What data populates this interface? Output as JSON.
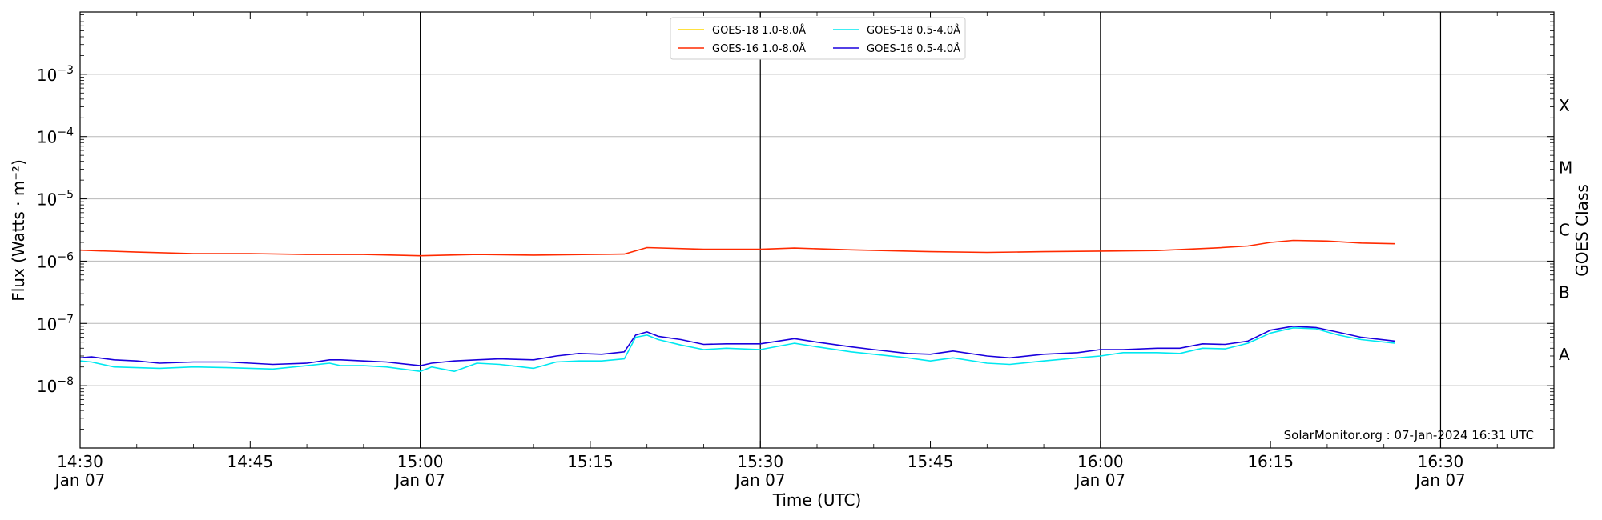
{
  "chart_data": {
    "type": "line",
    "title": "",
    "xlabel": "Time (UTC)",
    "ylabel": "Flux (Watts · m⁻²)",
    "ylabel_right": "GOES Class",
    "yscale": "log",
    "ylim": [
      1e-09,
      0.01
    ],
    "xlim": [
      "14:30",
      "16:40"
    ],
    "x_ticks": [
      {
        "time": "14:30",
        "line1": "14:30",
        "line2": "Jan 07"
      },
      {
        "time": "14:45",
        "line1": "14:45",
        "line2": ""
      },
      {
        "time": "15:00",
        "line1": "15:00",
        "line2": "Jan 07"
      },
      {
        "time": "15:15",
        "line1": "15:15",
        "line2": ""
      },
      {
        "time": "15:30",
        "line1": "15:30",
        "line2": "Jan 07"
      },
      {
        "time": "15:45",
        "line1": "15:45",
        "line2": ""
      },
      {
        "time": "16:00",
        "line1": "16:00",
        "line2": "Jan 07"
      },
      {
        "time": "16:15",
        "line1": "16:15",
        "line2": ""
      },
      {
        "time": "16:30",
        "line1": "16:30",
        "line2": "Jan 07"
      }
    ],
    "vertical_lines": [
      "15:00",
      "15:30",
      "16:00",
      "16:30"
    ],
    "y_ticks": [
      {
        "value": 1e-08,
        "label": "10",
        "exp": "−8"
      },
      {
        "value": 1e-07,
        "label": "10",
        "exp": "−7"
      },
      {
        "value": 1e-06,
        "label": "10",
        "exp": "−6"
      },
      {
        "value": 1e-05,
        "label": "10",
        "exp": "−5"
      },
      {
        "value": 0.0001,
        "label": "10",
        "exp": "−4"
      },
      {
        "value": 0.001,
        "label": "10",
        "exp": "−3"
      }
    ],
    "grid_y": [
      1e-08,
      1e-07,
      1e-06,
      1e-05,
      0.0001,
      0.001
    ],
    "goes_classes": [
      {
        "label": "A",
        "value": 3.16e-08
      },
      {
        "label": "B",
        "value": 3.16e-07
      },
      {
        "label": "C",
        "value": 3.16e-06
      },
      {
        "label": "M",
        "value": 3.16e-05
      },
      {
        "label": "X",
        "value": 0.000316
      }
    ],
    "legend_position": "top-center",
    "credit": "SolarMonitor.org : 07-Jan-2024 16:31 UTC",
    "series": [
      {
        "name": "GOES-18 1.0-8.0Å",
        "color": "#ffd700",
        "x": [],
        "y": []
      },
      {
        "name": "GOES-16 1.0-8.0Å",
        "color": "#ff2a00",
        "x": [
          "14:30",
          "14:35",
          "14:40",
          "14:45",
          "14:50",
          "14:55",
          "15:00",
          "15:05",
          "15:10",
          "15:15",
          "15:18",
          "15:20",
          "15:25",
          "15:30",
          "15:33",
          "15:38",
          "15:45",
          "15:50",
          "15:55",
          "16:00",
          "16:05",
          "16:10",
          "16:13",
          "16:15",
          "16:17",
          "16:20",
          "16:23",
          "16:26"
        ],
        "y": [
          1.5e-06,
          1.4e-06,
          1.32e-06,
          1.32e-06,
          1.28e-06,
          1.28e-06,
          1.22e-06,
          1.28e-06,
          1.25e-06,
          1.28e-06,
          1.3e-06,
          1.65e-06,
          1.55e-06,
          1.55e-06,
          1.62e-06,
          1.52e-06,
          1.42e-06,
          1.38e-06,
          1.42e-06,
          1.45e-06,
          1.48e-06,
          1.62e-06,
          1.75e-06,
          2e-06,
          2.15e-06,
          2.1e-06,
          1.95e-06,
          1.9e-06
        ]
      },
      {
        "name": "GOES-18 0.5-4.0Å",
        "color": "#00e8f0",
        "x": [
          "14:30",
          "14:31",
          "14:33",
          "14:35",
          "14:37",
          "14:40",
          "14:43",
          "14:45",
          "14:47",
          "14:50",
          "14:52",
          "14:53",
          "14:55",
          "14:57",
          "15:00",
          "15:01",
          "15:03",
          "15:05",
          "15:07",
          "15:10",
          "15:12",
          "15:14",
          "15:16",
          "15:18",
          "15:19",
          "15:20",
          "15:21",
          "15:23",
          "15:25",
          "15:27",
          "15:30",
          "15:33",
          "15:35",
          "15:38",
          "15:40",
          "15:43",
          "15:45",
          "15:47",
          "15:50",
          "15:52",
          "15:55",
          "15:58",
          "16:00",
          "16:02",
          "16:05",
          "16:07",
          "16:09",
          "16:11",
          "16:13",
          "16:15",
          "16:17",
          "16:19",
          "16:21",
          "16:23",
          "16:26"
        ],
        "y": [
          2.5e-08,
          2.4e-08,
          2e-08,
          1.95e-08,
          1.9e-08,
          2e-08,
          1.95e-08,
          1.9e-08,
          1.85e-08,
          2.1e-08,
          2.3e-08,
          2.1e-08,
          2.1e-08,
          2e-08,
          1.7e-08,
          2e-08,
          1.7e-08,
          2.3e-08,
          2.2e-08,
          1.9e-08,
          2.4e-08,
          2.5e-08,
          2.5e-08,
          2.7e-08,
          6e-08,
          6.5e-08,
          5.5e-08,
          4.5e-08,
          3.8e-08,
          4e-08,
          3.8e-08,
          4.8e-08,
          4.2e-08,
          3.5e-08,
          3.2e-08,
          2.8e-08,
          2.5e-08,
          2.8e-08,
          2.3e-08,
          2.2e-08,
          2.5e-08,
          2.8e-08,
          3e-08,
          3.4e-08,
          3.4e-08,
          3.3e-08,
          4e-08,
          3.9e-08,
          4.8e-08,
          7e-08,
          8.5e-08,
          8.2e-08,
          6.5e-08,
          5.5e-08,
          4.8e-08
        ]
      },
      {
        "name": "GOES-16 0.5-4.0Å",
        "color": "#1a00dd",
        "x": [
          "14:30",
          "14:31",
          "14:33",
          "14:35",
          "14:37",
          "14:40",
          "14:43",
          "14:45",
          "14:47",
          "14:50",
          "14:52",
          "14:53",
          "14:55",
          "14:57",
          "15:00",
          "15:01",
          "15:03",
          "15:05",
          "15:07",
          "15:10",
          "15:12",
          "15:14",
          "15:16",
          "15:18",
          "15:19",
          "15:20",
          "15:21",
          "15:23",
          "15:25",
          "15:27",
          "15:30",
          "15:33",
          "15:35",
          "15:38",
          "15:40",
          "15:43",
          "15:45",
          "15:47",
          "15:50",
          "15:52",
          "15:55",
          "15:58",
          "16:00",
          "16:02",
          "16:05",
          "16:07",
          "16:09",
          "16:11",
          "16:13",
          "16:15",
          "16:17",
          "16:19",
          "16:21",
          "16:23",
          "16:26"
        ],
        "y": [
          2.8e-08,
          2.9e-08,
          2.6e-08,
          2.5e-08,
          2.3e-08,
          2.4e-08,
          2.4e-08,
          2.3e-08,
          2.2e-08,
          2.3e-08,
          2.6e-08,
          2.6e-08,
          2.5e-08,
          2.4e-08,
          2.1e-08,
          2.3e-08,
          2.5e-08,
          2.6e-08,
          2.7e-08,
          2.6e-08,
          3e-08,
          3.3e-08,
          3.2e-08,
          3.5e-08,
          6.5e-08,
          7.3e-08,
          6.2e-08,
          5.5e-08,
          4.6e-08,
          4.7e-08,
          4.7e-08,
          5.7e-08,
          5e-08,
          4.2e-08,
          3.8e-08,
          3.3e-08,
          3.2e-08,
          3.6e-08,
          3e-08,
          2.8e-08,
          3.2e-08,
          3.4e-08,
          3.8e-08,
          3.8e-08,
          4e-08,
          4e-08,
          4.7e-08,
          4.6e-08,
          5.2e-08,
          7.8e-08,
          9e-08,
          8.6e-08,
          7.2e-08,
          6e-08,
          5.2e-08
        ]
      }
    ]
  }
}
